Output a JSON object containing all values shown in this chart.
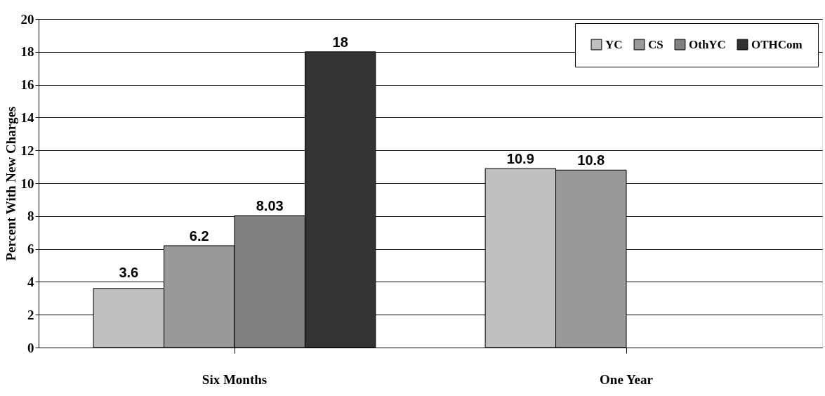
{
  "chart_data": {
    "type": "bar",
    "ylabel": "Percent With New Charges",
    "categories": [
      "Six Months",
      "One Year"
    ],
    "series": [
      {
        "name": "YC",
        "color": "#c0c0c0",
        "values": [
          3.6,
          10.9
        ]
      },
      {
        "name": "CS",
        "color": "#999999",
        "values": [
          6.2,
          10.8
        ]
      },
      {
        "name": "OthYC",
        "color": "#808080",
        "values": [
          8.03,
          null
        ]
      },
      {
        "name": "OTHCom",
        "color": "#333333",
        "values": [
          18,
          null
        ]
      }
    ],
    "ylim": [
      0,
      20
    ],
    "yticks": [
      0,
      2,
      4,
      6,
      8,
      10,
      12,
      14,
      16,
      18,
      20
    ],
    "grid": "y",
    "legend": "top right",
    "data_labels": true
  }
}
